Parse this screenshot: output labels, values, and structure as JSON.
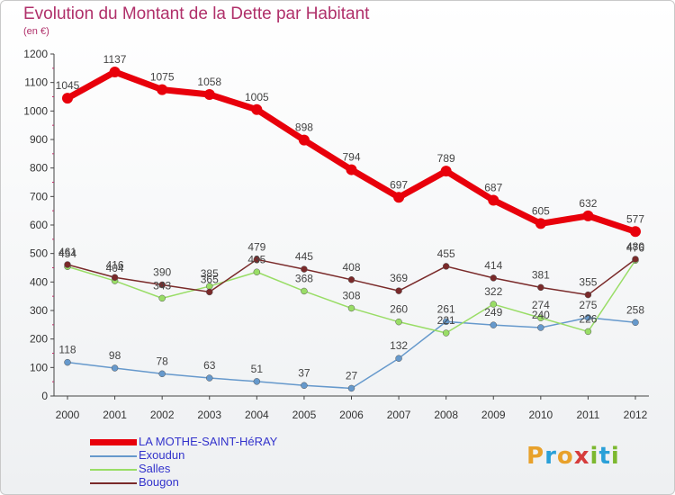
{
  "title": "Evolution du Montant de la Dette par Habitant",
  "subtitle": "(en €)",
  "logo": {
    "text": "Proxiti",
    "letters": [
      "P",
      "r",
      "o",
      "x",
      "i",
      "t",
      "i"
    ],
    "colors": [
      "#e8a12b",
      "#2aa0d8",
      "#e8a12b",
      "#d63c3c",
      "#7cb82f",
      "#2aa0d8",
      "#7cb82f"
    ]
  },
  "colors": {
    "title": "#b0306a",
    "axis_text": "#333333",
    "label_text": "#444444"
  },
  "chart_data": {
    "type": "line",
    "title": "Evolution du Montant de la Dette par Habitant",
    "subtitle": "(en €)",
    "x": [
      "2000",
      "2001",
      "2002",
      "2003",
      "2004",
      "2005",
      "2006",
      "2007",
      "2008",
      "2009",
      "2010",
      "2011",
      "2012"
    ],
    "yticks": [
      0,
      100,
      200,
      300,
      400,
      500,
      600,
      700,
      800,
      900,
      1000,
      1100,
      1200
    ],
    "ylim": [
      0,
      1200
    ],
    "grid": false,
    "legend_position": "bottom-left",
    "series": [
      {
        "name": "LA MOTHE-SAINT-HéRAY",
        "color": "#e8000b",
        "width": 7,
        "marker": 6,
        "legend_color": "#3333cc",
        "values": [
          1045,
          1137,
          1075,
          1058,
          1005,
          898,
          794,
          697,
          789,
          687,
          605,
          632,
          577
        ],
        "labels": [
          "1045",
          "1137",
          "1075",
          "1058",
          "1005",
          "898",
          "794",
          "697",
          "789",
          "687",
          "605",
          "632",
          "577"
        ]
      },
      {
        "name": "Exoudun",
        "color": "#6699cc",
        "width": 1.5,
        "marker": 3.5,
        "legend_color": "#3333cc",
        "values": [
          118,
          98,
          78,
          63,
          51,
          37,
          27,
          132,
          261,
          249,
          240,
          275,
          258
        ],
        "labels": [
          "118",
          "98",
          "78",
          "63",
          "51",
          "37",
          "27",
          "132",
          "261",
          "249",
          "240",
          "275",
          "258"
        ]
      },
      {
        "name": "Salles",
        "color": "#99dd66",
        "width": 1.5,
        "marker": 3.5,
        "legend_color": "#3333cc",
        "values": [
          454,
          404,
          343,
          385,
          435,
          368,
          308,
          260,
          221,
          322,
          274,
          226,
          476
        ],
        "labels": [
          "454",
          "404",
          "343",
          "385",
          "435",
          "368",
          "308",
          "260",
          "221",
          "322",
          "274",
          "226",
          "476"
        ]
      },
      {
        "name": "Bougon",
        "color": "#7a2a2a",
        "width": 1.5,
        "marker": 3.5,
        "legend_color": "#3333cc",
        "values": [
          461,
          416,
          390,
          365,
          479,
          445,
          408,
          369,
          455,
          414,
          381,
          355,
          480
        ],
        "labels": [
          "461",
          "416",
          "390",
          "365",
          "479",
          "445",
          "408",
          "369",
          "455",
          "414",
          "381",
          "355",
          "480"
        ]
      }
    ]
  }
}
